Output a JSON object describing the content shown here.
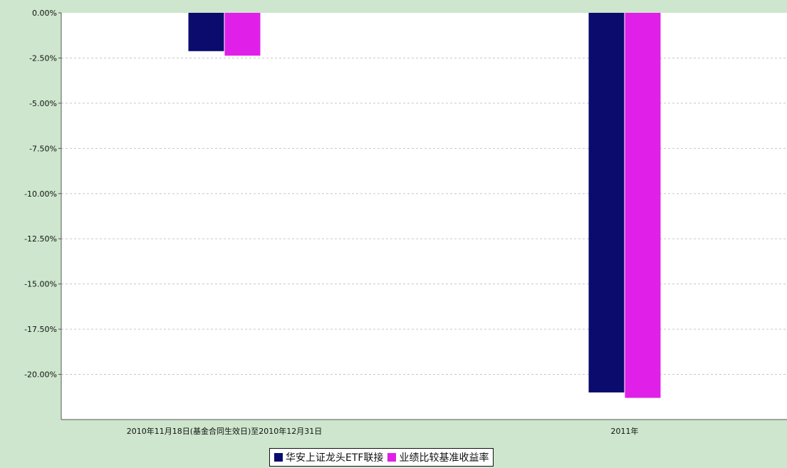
{
  "chart_data": {
    "type": "bar",
    "title": "",
    "xlabel": "",
    "ylabel": "",
    "categories": [
      "2010年11月18日(基金合同生效日)至2010年12月31日",
      "2011年"
    ],
    "series": [
      {
        "name": "华安上证龙头ETF联接",
        "color": "#0b0b6e",
        "values": [
          -2.12,
          -21.0
        ]
      },
      {
        "name": "业绩比较基准收益率",
        "color": "#e020e8",
        "values": [
          -2.37,
          -21.3
        ]
      }
    ],
    "ylim": [
      -22.5,
      0
    ],
    "yticks": [
      0,
      -2.5,
      -5,
      -7.5,
      -10,
      -12.5,
      -15,
      -17.5,
      -20
    ],
    "ytick_labels": [
      "0.00%",
      "-2.50%",
      "-5.00%",
      "-7.50%",
      "-10.00%",
      "-12.50%",
      "-15.00%",
      "-17.50%",
      "-20.00%"
    ],
    "grid": true,
    "legend": "bottom-center",
    "colors": {
      "background": "#cde6cd",
      "plot": "#ffffff",
      "grid": "#c8c8c8"
    }
  }
}
